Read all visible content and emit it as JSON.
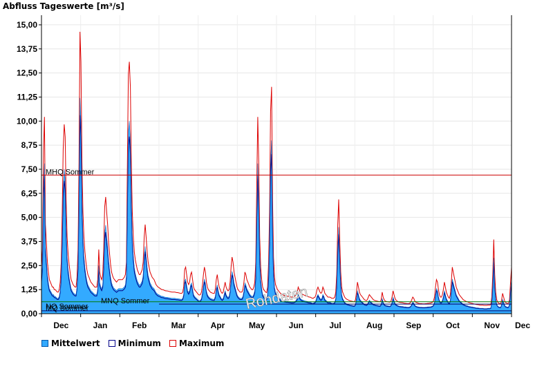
{
  "title": "Abfluss Tageswerte [m³/s]",
  "chart_data": {
    "type": "area",
    "ylim": [
      0,
      15.5
    ],
    "yticks": [
      "0,00",
      "1,25",
      "2,50",
      "3,75",
      "5,00",
      "6,25",
      "7,50",
      "8,75",
      "10,00",
      "11,25",
      "12,50",
      "13,75",
      "15,00"
    ],
    "ytick_values": [
      0,
      1.25,
      2.5,
      3.75,
      5.0,
      6.25,
      7.5,
      8.75,
      10.0,
      11.25,
      12.5,
      13.75,
      15.0
    ],
    "months": [
      "Dec",
      "Jan",
      "Feb",
      "Mar",
      "Apr",
      "May",
      "Jun",
      "Jul",
      "Aug",
      "Sep",
      "Oct",
      "Nov",
      "Dec"
    ],
    "grid": true,
    "reference_lines": [
      {
        "label": "MHQ Sommer",
        "value": 7.2,
        "color": "#cc0000"
      },
      {
        "label": "MQ Sommer",
        "value": 0.62,
        "color": "#007700"
      },
      {
        "label": "MNQ Sommer",
        "value": 0.5,
        "color": "#000066"
      },
      {
        "label": "NQ Sommer",
        "value": 0.15,
        "color": "#000066"
      }
    ],
    "watermark": "Rohdaten",
    "series": [
      {
        "name": "Mittelwert",
        "color": "#33aaff"
      },
      {
        "name": "Minimum",
        "color": "#000088"
      },
      {
        "name": "Maximum",
        "color": "#dd0000"
      }
    ],
    "day_values": [
      1.8,
      2.5,
      6.5,
      7.8,
      3.5,
      2.8,
      2.0,
      1.6,
      1.3,
      1.2,
      1.1,
      1.0,
      1.0,
      0.9,
      0.9,
      0.85,
      0.8,
      0.8,
      0.9,
      1.2,
      2.0,
      4.0,
      6.5,
      7.5,
      7.0,
      4.5,
      3.0,
      2.3,
      1.9,
      1.6,
      1.3,
      1.2,
      1.1,
      1.05,
      1.0,
      1.0,
      1.4,
      2.5,
      6.0,
      11.2,
      10.0,
      6.0,
      4.0,
      3.0,
      2.4,
      2.0,
      1.7,
      1.5,
      1.4,
      1.3,
      1.2,
      1.15,
      1.1,
      1.05,
      1.0,
      1.0,
      1.0,
      1.3,
      2.5,
      1.6,
      1.4,
      1.3,
      1.5,
      2.5,
      4.2,
      4.6,
      4.0,
      3.5,
      2.8,
      2.3,
      1.9,
      1.6,
      1.45,
      1.35,
      1.3,
      1.25,
      1.2,
      1.25,
      1.3,
      1.3,
      1.3,
      1.3,
      1.3,
      1.35,
      1.4,
      1.5,
      2.0,
      6.0,
      9.5,
      10.0,
      9.0,
      6.0,
      4.0,
      3.0,
      2.4,
      2.1,
      1.9,
      1.7,
      1.6,
      1.5,
      1.5,
      1.6,
      1.7,
      2.0,
      3.0,
      3.5,
      3.0,
      2.4,
      2.0,
      1.8,
      1.6,
      1.5,
      1.4,
      1.35,
      1.3,
      1.2,
      1.1,
      1.05,
      1.0,
      0.98,
      0.95,
      0.92,
      0.9,
      0.9,
      0.88,
      0.86,
      0.85,
      0.85,
      0.84,
      0.83,
      0.82,
      0.81,
      0.8,
      0.8,
      0.8,
      0.8,
      0.79,
      0.78,
      0.78,
      0.77,
      0.76,
      0.75,
      0.75,
      0.8,
      1.0,
      1.7,
      1.8,
      1.5,
      1.2,
      1.1,
      1.2,
      1.5,
      1.6,
      1.3,
      1.0,
      0.9,
      0.85,
      0.8,
      0.75,
      0.7,
      0.68,
      0.7,
      0.8,
      1.1,
      1.5,
      1.8,
      1.6,
      1.2,
      1.0,
      0.9,
      0.85,
      0.8,
      0.78,
      0.76,
      0.75,
      0.75,
      0.9,
      1.3,
      1.5,
      1.2,
      1.0,
      0.9,
      0.8,
      0.75,
      0.8,
      1.0,
      1.2,
      1.0,
      0.9,
      0.85,
      0.9,
      1.2,
      1.8,
      2.2,
      2.0,
      1.6,
      1.4,
      1.2,
      1.0,
      0.9,
      0.85,
      0.8,
      0.8,
      0.8,
      0.9,
      1.2,
      1.6,
      1.5,
      1.3,
      1.2,
      1.1,
      1.0,
      0.95,
      0.9,
      0.9,
      1.0,
      1.2,
      2.0,
      5.0,
      7.8,
      6.0,
      3.0,
      1.8,
      1.3,
      1.0,
      0.9,
      0.85,
      0.8,
      0.78,
      1.0,
      2.0,
      4.0,
      8.0,
      9.0,
      4.5,
      2.2,
      1.4,
      1.1,
      1.0,
      0.9,
      0.85,
      0.8,
      0.75,
      0.72,
      0.7,
      0.68,
      0.66,
      0.65,
      0.64,
      0.64,
      0.63,
      0.62,
      0.62,
      0.6,
      0.6,
      0.6,
      0.62,
      0.65,
      0.7,
      0.8,
      1.0,
      0.9,
      0.8,
      0.75,
      0.72,
      0.7,
      0.68,
      0.66,
      0.65,
      0.64,
      0.62,
      0.6,
      0.6,
      0.58,
      0.56,
      0.55,
      0.58,
      0.6,
      0.7,
      0.9,
      1.0,
      0.9,
      0.8,
      0.75,
      0.8,
      1.0,
      0.9,
      0.75,
      0.7,
      0.65,
      0.6,
      0.6,
      0.6,
      0.58,
      0.55,
      0.55,
      0.56,
      0.6,
      0.8,
      1.5,
      3.5,
      4.5,
      3.0,
      1.6,
      1.0,
      0.8,
      0.7,
      0.6,
      0.55,
      0.52,
      0.5,
      0.48,
      0.46,
      0.45,
      0.44,
      0.43,
      0.42,
      0.42,
      0.5,
      0.8,
      1.2,
      1.0,
      0.8,
      0.7,
      0.65,
      0.6,
      0.55,
      0.5,
      0.48,
      0.46,
      0.5,
      0.6,
      0.7,
      0.65,
      0.6,
      0.55,
      0.5,
      0.48,
      0.46,
      0.45,
      0.44,
      0.43,
      0.42,
      0.42,
      0.5,
      0.8,
      0.6,
      0.5,
      0.45,
      0.43,
      0.42,
      0.41,
      0.4,
      0.4,
      0.45,
      0.6,
      0.85,
      0.7,
      0.55,
      0.48,
      0.45,
      0.42,
      0.4,
      0.39,
      0.38,
      0.38,
      0.37,
      0.36,
      0.35,
      0.35,
      0.34,
      0.34,
      0.34,
      0.36,
      0.4,
      0.5,
      0.6,
      0.55,
      0.45,
      0.4,
      0.38,
      0.36,
      0.35,
      0.34,
      0.34,
      0.34,
      0.33,
      0.33,
      0.33,
      0.34,
      0.34,
      0.35,
      0.35,
      0.36,
      0.36,
      0.38,
      0.4,
      0.45,
      0.6,
      1.0,
      1.3,
      1.2,
      0.9,
      0.7,
      0.6,
      0.6,
      0.7,
      0.9,
      1.2,
      1.0,
      0.8,
      0.7,
      0.6,
      0.55,
      0.7,
      1.2,
      1.8,
      1.6,
      1.4,
      1.2,
      1.0,
      0.9,
      0.8,
      0.7,
      0.65,
      0.6,
      0.55,
      0.5,
      0.48,
      0.45,
      0.43,
      0.42,
      0.4,
      0.38,
      0.37,
      0.36,
      0.35,
      0.34,
      0.33,
      0.32,
      0.31,
      0.3,
      0.3,
      0.29,
      0.28,
      0.28,
      0.28,
      0.28,
      0.27,
      0.27,
      0.27,
      0.27,
      0.28,
      0.28,
      0.28,
      0.3,
      0.6,
      1.5,
      2.9,
      1.5,
      0.8,
      0.5,
      0.4,
      0.36,
      0.34,
      0.34,
      0.5,
      0.75,
      0.6,
      0.45,
      0.38,
      0.36,
      0.34,
      0.36,
      0.5,
      1.2,
      1.8
    ]
  },
  "legend": {
    "items": [
      {
        "label": "Mittelwert",
        "fill": "#33aaff",
        "border": "#0055aa"
      },
      {
        "label": "Minimum",
        "fill": "#ffffff",
        "border": "#000088"
      },
      {
        "label": "Maximum",
        "fill": "#ffffff",
        "border": "#dd0000"
      }
    ]
  }
}
